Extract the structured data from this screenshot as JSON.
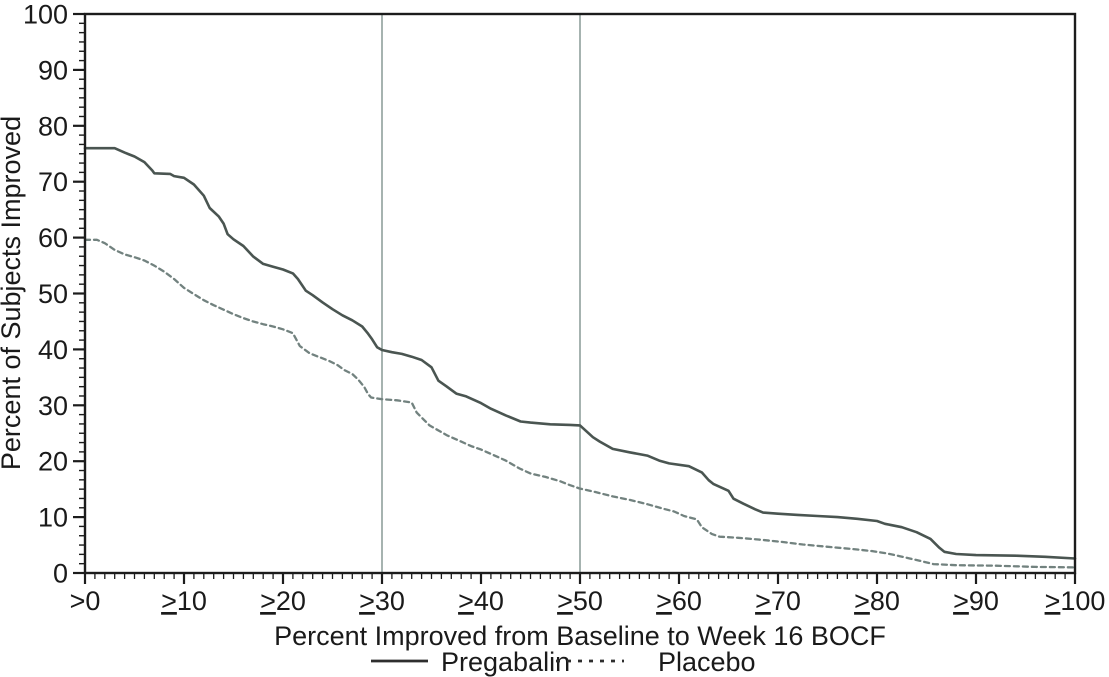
{
  "figure": {
    "background": "#ffffff",
    "text_color": "#1a1a1a",
    "axis_color": "#1c1c1c"
  },
  "chart_data": {
    "type": "line",
    "title": "",
    "xlabel": "Percent Improved from Baseline to Week 16 BOCF",
    "ylabel": "Percent of Subjects Improved",
    "xlim": [
      0,
      100
    ],
    "ylim": [
      0,
      100
    ],
    "grid": "off",
    "legend_position": "bottom",
    "reference_lines_x": [
      30,
      50
    ],
    "reference_line_color": "#8fa09c",
    "x_ticks": [
      {
        "value": 0,
        "prefix": ">",
        "underline": false,
        "label": "0"
      },
      {
        "value": 10,
        "prefix": ">",
        "underline": true,
        "label": "10"
      },
      {
        "value": 20,
        "prefix": ">",
        "underline": true,
        "label": "20"
      },
      {
        "value": 30,
        "prefix": ">",
        "underline": true,
        "label": "30"
      },
      {
        "value": 40,
        "prefix": ">",
        "underline": true,
        "label": "40"
      },
      {
        "value": 50,
        "prefix": ">",
        "underline": true,
        "label": "50"
      },
      {
        "value": 60,
        "prefix": ">",
        "underline": true,
        "label": "60"
      },
      {
        "value": 70,
        "prefix": ">",
        "underline": true,
        "label": "70"
      },
      {
        "value": 80,
        "prefix": ">",
        "underline": true,
        "label": "80"
      },
      {
        "value": 90,
        "prefix": ">",
        "underline": true,
        "label": "90"
      },
      {
        "value": 100,
        "prefix": ">",
        "underline": true,
        "label": "100"
      }
    ],
    "y_ticks": [
      {
        "value": 0,
        "label": "0"
      },
      {
        "value": 10,
        "label": "10"
      },
      {
        "value": 20,
        "label": "20"
      },
      {
        "value": 30,
        "label": "30"
      },
      {
        "value": 40,
        "label": "40"
      },
      {
        "value": 50,
        "label": "50"
      },
      {
        "value": 60,
        "label": "60"
      },
      {
        "value": 70,
        "label": "70"
      },
      {
        "value": 80,
        "label": "80"
      },
      {
        "value": 90,
        "label": "90"
      },
      {
        "value": 100,
        "label": "100"
      }
    ],
    "key_values": {
      "pregabalin_at_30": 40,
      "placebo_at_30": 31,
      "pregabalin_at_50": 26.4,
      "placebo_at_50": 15
    },
    "series": [
      {
        "id": "pregabalin",
        "name": "Pregabalin",
        "style": "solid",
        "color": "#4a5551",
        "points": [
          [
            0,
            76
          ],
          [
            3,
            76
          ],
          [
            4,
            75.2
          ],
          [
            5,
            74.5
          ],
          [
            6,
            73.5
          ],
          [
            6.8,
            72
          ],
          [
            7,
            71.5
          ],
          [
            8.6,
            71.4
          ],
          [
            9,
            71
          ],
          [
            10,
            70.7
          ],
          [
            11,
            69.5
          ],
          [
            12,
            67.5
          ],
          [
            12.6,
            65.3
          ],
          [
            13.5,
            63.8
          ],
          [
            14,
            62.5
          ],
          [
            14.4,
            60.6
          ],
          [
            15,
            59.7
          ],
          [
            16,
            58.5
          ],
          [
            17,
            56.6
          ],
          [
            18,
            55.3
          ],
          [
            19,
            54.8
          ],
          [
            20,
            54.3
          ],
          [
            21,
            53.6
          ],
          [
            21.5,
            52.6
          ],
          [
            22.3,
            50.5
          ],
          [
            23,
            49.7
          ],
          [
            24,
            48.4
          ],
          [
            25,
            47.2
          ],
          [
            26,
            46.1
          ],
          [
            27,
            45.2
          ],
          [
            28,
            44.1
          ],
          [
            28.6,
            42.8
          ],
          [
            29,
            41.8
          ],
          [
            29.5,
            40.4
          ],
          [
            30,
            39.9
          ],
          [
            31,
            39.5
          ],
          [
            32,
            39.2
          ],
          [
            33,
            38.7
          ],
          [
            34,
            38.1
          ],
          [
            35,
            36.8
          ],
          [
            35.7,
            34.4
          ],
          [
            36.5,
            33.4
          ],
          [
            37.5,
            32.1
          ],
          [
            38.5,
            31.6
          ],
          [
            40,
            30.4
          ],
          [
            41,
            29.4
          ],
          [
            42.5,
            28.2
          ],
          [
            44,
            27.1
          ],
          [
            45,
            26.9
          ],
          [
            47,
            26.6
          ],
          [
            49,
            26.5
          ],
          [
            50,
            26.4
          ],
          [
            51.3,
            24.3
          ],
          [
            52,
            23.5
          ],
          [
            53.3,
            22.2
          ],
          [
            55,
            21.6
          ],
          [
            56.8,
            21
          ],
          [
            58,
            20.1
          ],
          [
            59,
            19.6
          ],
          [
            61,
            19.1
          ],
          [
            62.3,
            18
          ],
          [
            63,
            16.6
          ],
          [
            63.5,
            15.9
          ],
          [
            65,
            14.7
          ],
          [
            65.5,
            13.3
          ],
          [
            66.5,
            12.4
          ],
          [
            67.7,
            11.4
          ],
          [
            68.5,
            10.8
          ],
          [
            70,
            10.6
          ],
          [
            72,
            10.4
          ],
          [
            74,
            10.2
          ],
          [
            76,
            10
          ],
          [
            78,
            9.7
          ],
          [
            80,
            9.3
          ],
          [
            80.8,
            8.8
          ],
          [
            82.5,
            8.2
          ],
          [
            84,
            7.3
          ],
          [
            85.4,
            6.1
          ],
          [
            86.3,
            4.5
          ],
          [
            86.8,
            3.8
          ],
          [
            88,
            3.4
          ],
          [
            90,
            3.2
          ],
          [
            94,
            3.1
          ],
          [
            97,
            2.9
          ],
          [
            100,
            2.6
          ]
        ]
      },
      {
        "id": "placebo",
        "name": "Placebo",
        "style": "dashed",
        "color": "#72827f",
        "points": [
          [
            0,
            59.6
          ],
          [
            1.2,
            59.6
          ],
          [
            2,
            59
          ],
          [
            3,
            57.8
          ],
          [
            4,
            57
          ],
          [
            5,
            56.5
          ],
          [
            6,
            55.9
          ],
          [
            7,
            55
          ],
          [
            8,
            53.9
          ],
          [
            9,
            52.6
          ],
          [
            10,
            51
          ],
          [
            11,
            49.9
          ],
          [
            12,
            48.8
          ],
          [
            13,
            47.9
          ],
          [
            14,
            47.1
          ],
          [
            15,
            46.3
          ],
          [
            16,
            45.6
          ],
          [
            17,
            45
          ],
          [
            18,
            44.5
          ],
          [
            19,
            44.1
          ],
          [
            20,
            43.6
          ],
          [
            21,
            42.9
          ],
          [
            21.7,
            40.6
          ],
          [
            22.7,
            39.3
          ],
          [
            23.7,
            38.6
          ],
          [
            24.7,
            37.9
          ],
          [
            25.5,
            37.2
          ],
          [
            26.2,
            36.3
          ],
          [
            27,
            35.6
          ],
          [
            27.6,
            34.6
          ],
          [
            28.2,
            33.3
          ],
          [
            28.6,
            32
          ],
          [
            28.9,
            31.4
          ],
          [
            30,
            31.1
          ],
          [
            31.5,
            30.9
          ],
          [
            33,
            30.5
          ],
          [
            33.5,
            28.7
          ],
          [
            34.8,
            26.4
          ],
          [
            35.8,
            25.4
          ],
          [
            36.6,
            24.6
          ],
          [
            38,
            23.5
          ],
          [
            39,
            22.7
          ],
          [
            40,
            22.1
          ],
          [
            41,
            21.3
          ],
          [
            42.5,
            20.1
          ],
          [
            43.9,
            18.7
          ],
          [
            45,
            17.8
          ],
          [
            46.5,
            17.2
          ],
          [
            48,
            16.4
          ],
          [
            49,
            15.7
          ],
          [
            50,
            15.1
          ],
          [
            51.5,
            14.5
          ],
          [
            53.3,
            13.7
          ],
          [
            55,
            13.1
          ],
          [
            56.8,
            12.3
          ],
          [
            58.4,
            11.5
          ],
          [
            59.5,
            11
          ],
          [
            60.5,
            10.2
          ],
          [
            61.8,
            9.6
          ],
          [
            62.3,
            8.2
          ],
          [
            63.3,
            7
          ],
          [
            64.1,
            6.5
          ],
          [
            66,
            6.3
          ],
          [
            68,
            6
          ],
          [
            70.2,
            5.6
          ],
          [
            72.5,
            5.1
          ],
          [
            75.6,
            4.6
          ],
          [
            78,
            4.2
          ],
          [
            79.6,
            3.9
          ],
          [
            81,
            3.5
          ],
          [
            82.3,
            3
          ],
          [
            83.3,
            2.6
          ],
          [
            84.3,
            2.2
          ],
          [
            85.7,
            1.6
          ],
          [
            88,
            1.4
          ],
          [
            92,
            1.3
          ],
          [
            96,
            1.1
          ],
          [
            100,
            1
          ]
        ]
      }
    ]
  },
  "legend": {
    "items": [
      {
        "label": "Pregabalin",
        "style": "solid"
      },
      {
        "label": "Placebo",
        "style": "dashed"
      }
    ]
  }
}
